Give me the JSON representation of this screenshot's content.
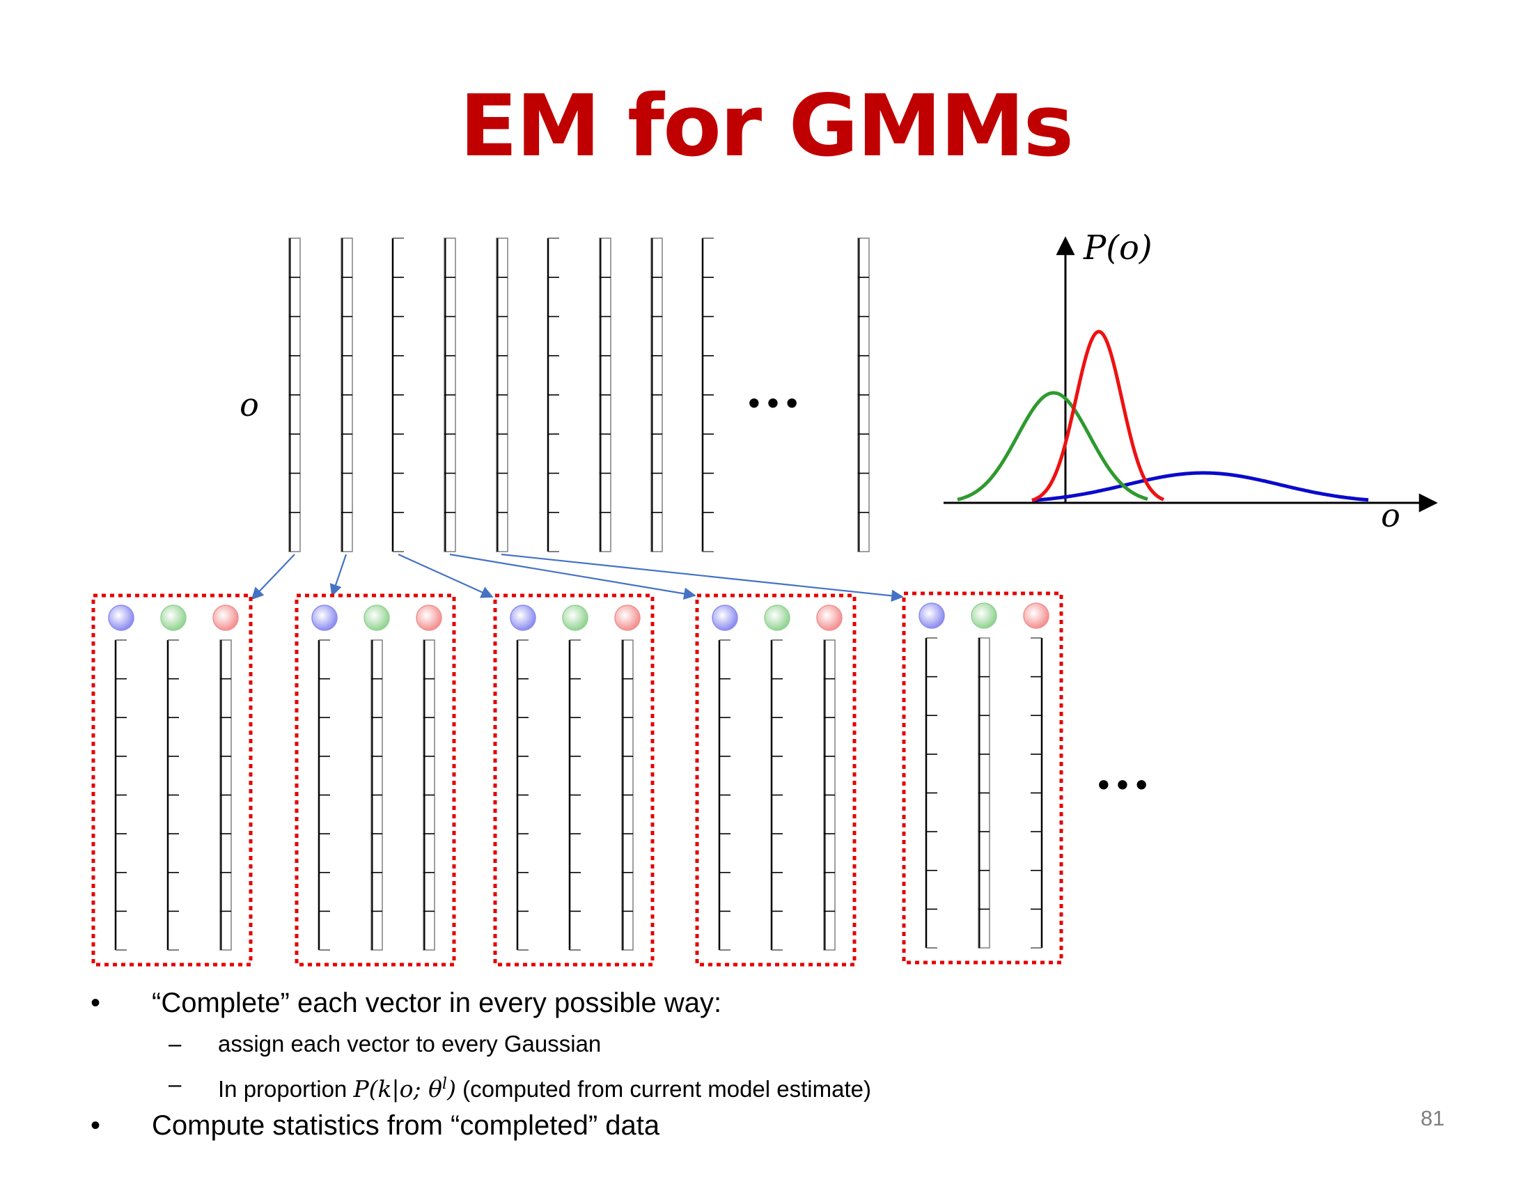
{
  "slide": {
    "title": "EM for GMMs",
    "page_number": "81"
  },
  "diagram": {
    "observation_label": "o",
    "top_ellipsis": "•••",
    "bottom_ellipsis": "•••",
    "plot": {
      "y_axis_label": "P(o)",
      "x_axis_label": "o",
      "curve_colors": [
        "#2E9A2E",
        "#EE1111",
        "#0A0ACC"
      ]
    },
    "gaussian_colors": [
      "#8C8CF0",
      "#92D392",
      "#F39090"
    ],
    "completion_box_color": "#E60000",
    "arrow_color": "#4472C4"
  },
  "bullets": {
    "item1": "“Complete” each vector in every possible way:",
    "sub1": "assign each vector to every Gaussian",
    "sub2_prefix": "In proportion ",
    "sub2_math_main": "P(k|o; θ",
    "sub2_math_sup": "l",
    "sub2_math_close": ")",
    "sub2_suffix": " (computed from current model estimate)",
    "item2": "Compute statistics from “completed” data",
    "bullet_char": "•",
    "dash_char": "–"
  }
}
